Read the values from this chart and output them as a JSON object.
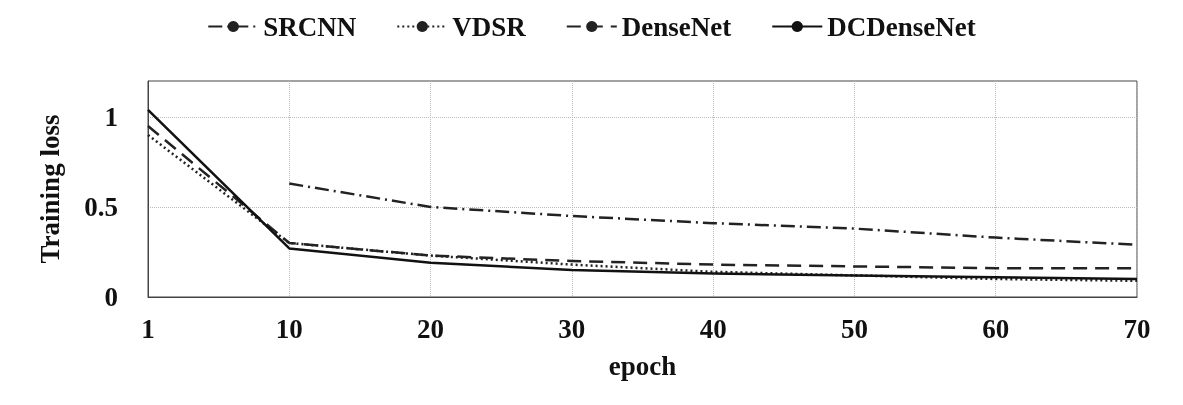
{
  "chart_data": {
    "type": "line",
    "xlabel": "epoch",
    "ylabel": "Training loss",
    "categories": [
      "1",
      "10",
      "20",
      "30",
      "40",
      "50",
      "60",
      "70"
    ],
    "series": [
      {
        "name": "SRCNN",
        "color": "#222222",
        "line_style": "dashdot",
        "values": [
          null,
          0.63,
          0.5,
          0.45,
          0.41,
          0.38,
          0.33,
          0.29
        ]
      },
      {
        "name": "VDSR",
        "color": "#222222",
        "line_style": "dotted",
        "values": [
          0.9,
          0.3,
          0.23,
          0.18,
          0.14,
          0.12,
          0.1,
          0.09
        ]
      },
      {
        "name": "DenseNet",
        "color": "#222222",
        "line_style": "dashed",
        "values": [
          0.95,
          0.3,
          0.23,
          0.2,
          0.18,
          0.17,
          0.16,
          0.16
        ]
      },
      {
        "name": "DCDenseNet",
        "color": "#111111",
        "line_style": "solid",
        "values": [
          1.04,
          0.27,
          0.19,
          0.15,
          0.13,
          0.12,
          0.11,
          0.1
        ]
      }
    ],
    "ylim": [
      0,
      1.2
    ],
    "yticks": [
      0,
      0.5,
      1
    ],
    "grid": true,
    "legend": "top",
    "marker": "none"
  }
}
